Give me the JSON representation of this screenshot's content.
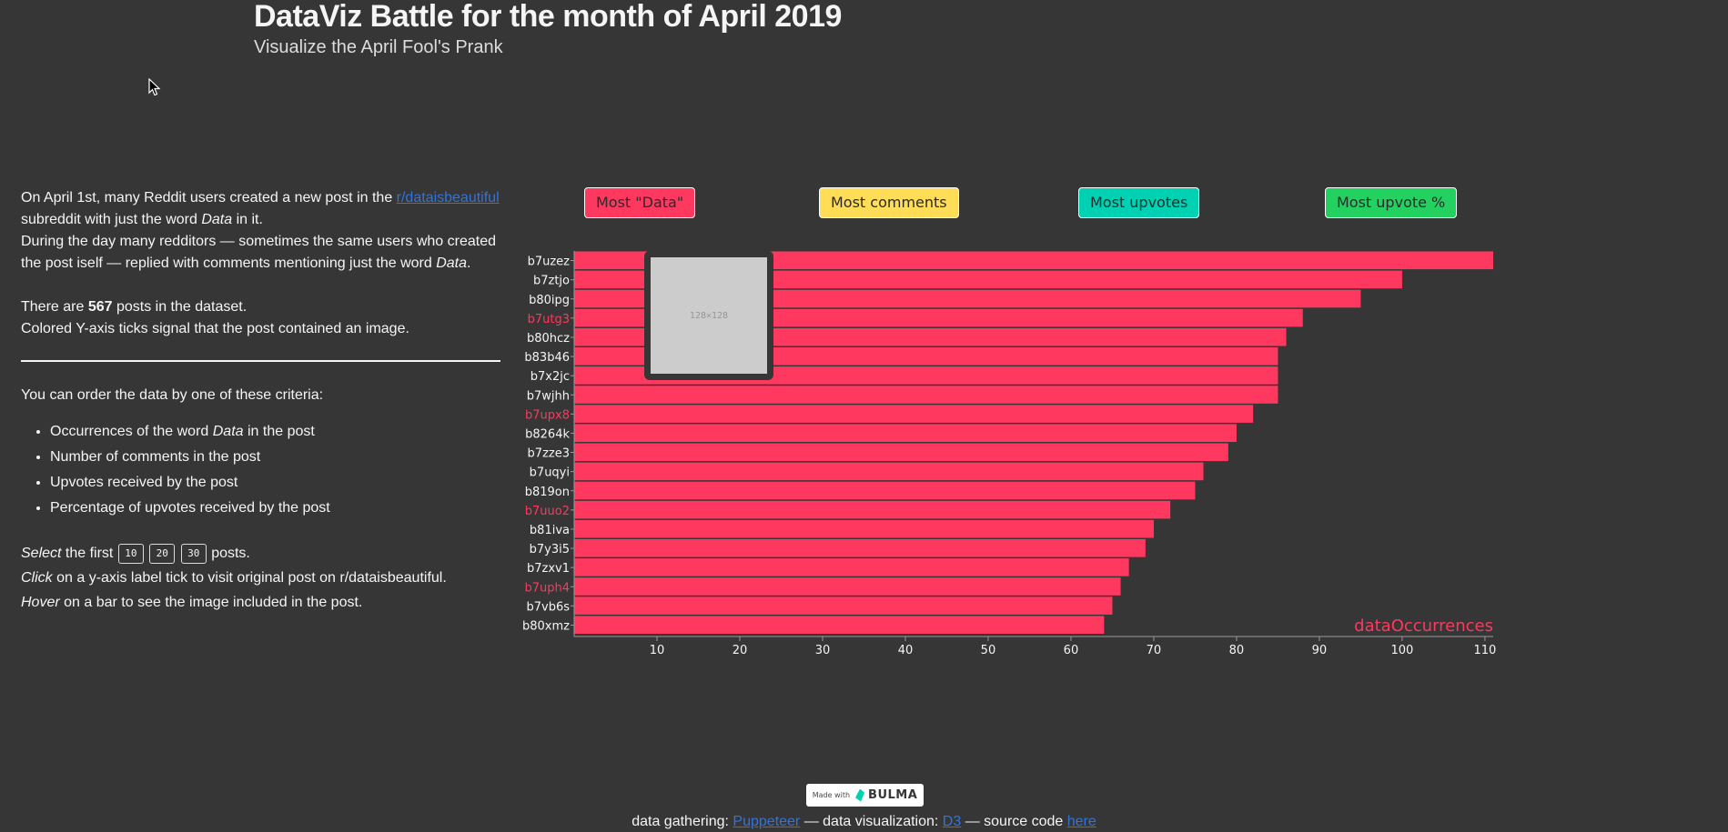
{
  "header": {
    "title": "DataViz Battle for the month of April 2019",
    "subtitle": "Visualize the April Fool's Prank"
  },
  "intro": {
    "p1_before": "On April 1st, many Reddit users created a new post in the ",
    "p1_link": "r/dataisbeautiful",
    "p1_middle": "subreddit with just the word ",
    "p1_em": "Data",
    "p1_after": " in it.",
    "p2_before": "During the day many redditors — sometimes the same users who created the post iself — replied with comments mentioning just the word ",
    "p2_em": "Data",
    "p2_after": ".",
    "count_before": "There are ",
    "count_value": "567",
    "count_after": " posts in the dataset.",
    "colored_note": "Colored Y-axis ticks signal that the post contained an image."
  },
  "order": {
    "lead": "You can order the data by one of these criteria:",
    "c1_before": "Occurrences of the word ",
    "c1_em": "Data",
    "c1_after": " in the post",
    "c2": "Number of comments in the post",
    "c3": "Upvotes received by the post",
    "c4": "Percentage of upvotes received by the post"
  },
  "controls": {
    "select_em": "Select",
    "select_text": " the first ",
    "n10": "10",
    "n20": "20",
    "n30": "30",
    "select_after": " posts.",
    "click_em": "Click",
    "click_text": " on a y-axis label tick to visit original post on r/dataisbeautiful.",
    "hover_em": "Hover",
    "hover_text": " on a bar to see the image included in the post."
  },
  "sort_buttons": {
    "data": "Most \"Data\"",
    "comments": "Most comments",
    "upvotes": "Most upvotes",
    "upvote_pct": "Most upvote %"
  },
  "tooltip": {
    "placeholder_text": "128×128"
  },
  "chart_data": {
    "type": "bar",
    "orientation": "horizontal",
    "metric_label": "dataOccurrences",
    "categories": [
      "b7uzez",
      "b7ztjo",
      "b80ipg",
      "b7utg3",
      "b80hcz",
      "b83b46",
      "b7x2jc",
      "b7wjhh",
      "b7upx8",
      "b8264k",
      "b7zze3",
      "b7uqyi",
      "b819on",
      "b7uuo2",
      "b81iva",
      "b7y3i5",
      "b7zxv1",
      "b7uph4",
      "b7vb6s",
      "b80xmz"
    ],
    "values": [
      111,
      100,
      95,
      88,
      86,
      85,
      85,
      85,
      82,
      80,
      79,
      76,
      75,
      72,
      70,
      69,
      67,
      66,
      65,
      64
    ],
    "has_image": [
      false,
      false,
      false,
      true,
      false,
      false,
      false,
      false,
      true,
      false,
      false,
      false,
      false,
      true,
      false,
      false,
      false,
      true,
      false,
      false
    ],
    "xticks": [
      10,
      20,
      30,
      40,
      50,
      60,
      70,
      80,
      90,
      100,
      110
    ],
    "xlim": [
      0,
      111
    ],
    "bar_color": "#ff3860",
    "image_tick_color": "#ff3860",
    "tick_color": "#f5f5f5"
  },
  "footer": {
    "made_with": "Made with",
    "bulma": "BULMA",
    "gathering_label": "data gathering: ",
    "gathering_link": "Puppeteer",
    "viz_label": " — data visualization: ",
    "viz_link": "D3",
    "source_label": " — source code ",
    "source_link": "here"
  }
}
